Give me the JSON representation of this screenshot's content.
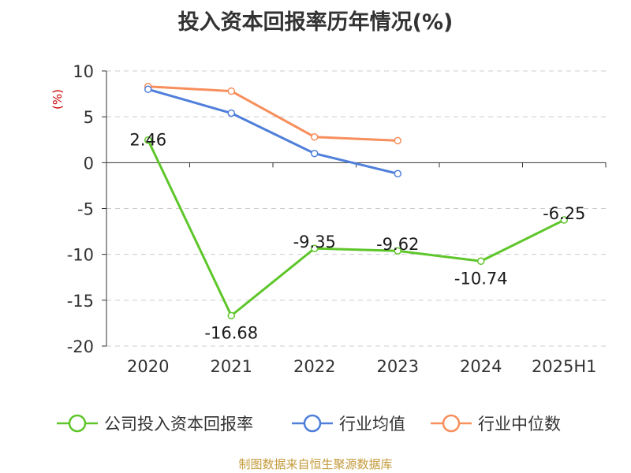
{
  "chart_data": {
    "type": "line",
    "title": "投入资本回报率历年情况(%)",
    "ylabel": "(%)",
    "xlabel": "",
    "categories": [
      "2020",
      "2021",
      "2022",
      "2023",
      "2024",
      "2025H1"
    ],
    "ylim": [
      -20,
      10
    ],
    "yticks": [
      10,
      5,
      0,
      -5,
      -10,
      -15,
      -20
    ],
    "grid": true,
    "legend_position": "bottom",
    "series": [
      {
        "name": "公司投入资本回报率",
        "color": "#5ec62a",
        "values": [
          2.46,
          -16.68,
          -9.35,
          -9.62,
          -10.74,
          -6.25
        ],
        "labels": [
          "2.46",
          "-16.68",
          "-9.35",
          "-9.62",
          "-10.74",
          "-6.25"
        ]
      },
      {
        "name": "行业均值",
        "color": "#4f7fdb",
        "values": [
          8.0,
          5.4,
          1.0,
          -1.2,
          null,
          null
        ]
      },
      {
        "name": "行业中位数",
        "color": "#f78f5c",
        "values": [
          8.3,
          7.8,
          2.8,
          2.4,
          null,
          null
        ]
      }
    ]
  },
  "footer": {
    "source": "制图数据来自恒生聚源数据库"
  }
}
